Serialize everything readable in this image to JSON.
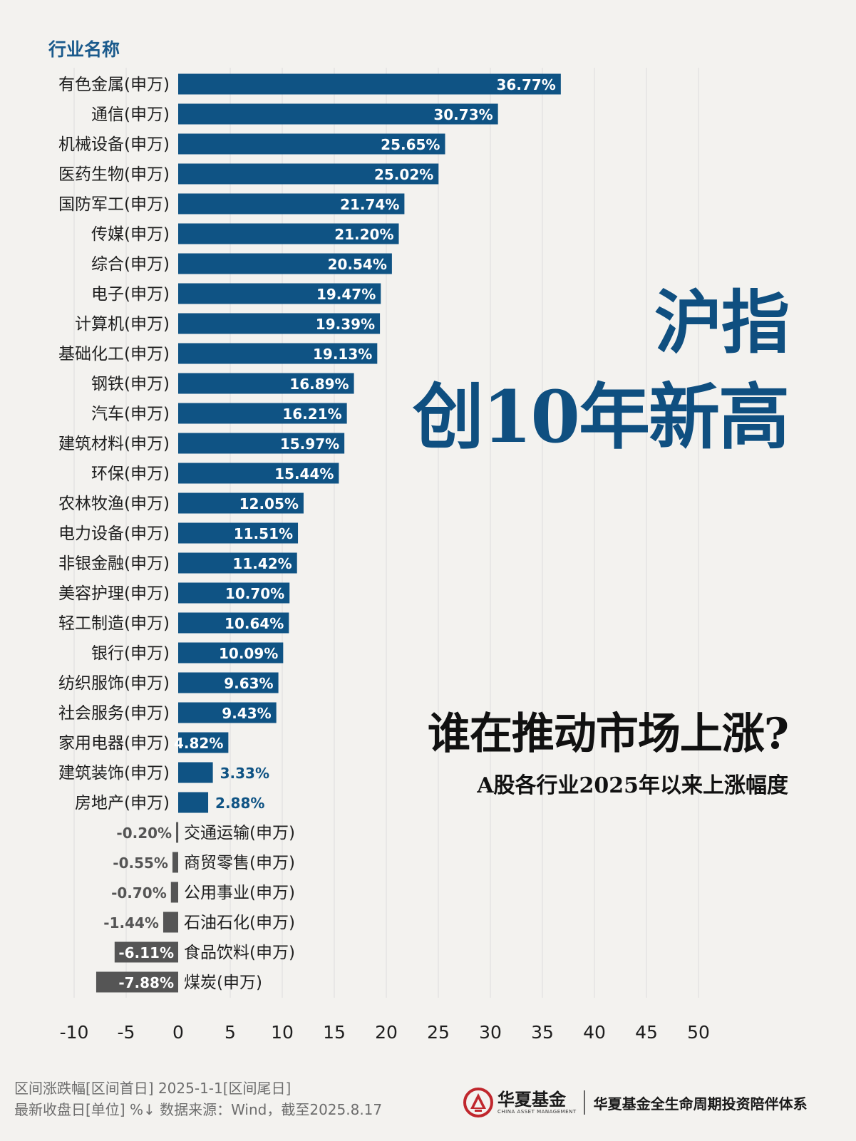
{
  "header": {
    "column_title": "行业名称",
    "headline_line1": "沪指",
    "headline_line2": "创10年新高",
    "question": "谁在推动市场上涨?",
    "subtitle": "A股各行业2025年以来上涨幅度"
  },
  "footer": {
    "note_line1": "区间涨跌幅[区间首日] 2025-1-1[区间尾日]",
    "note_line2": "最新收盘日[单位] %↓ 数据来源：Wind，截至2025.8.17",
    "brand_name": "华夏基金",
    "brand_en": "CHINA ASSET MANAGEMENT",
    "slogan": "华夏基金全生命周期投资陪伴体系"
  },
  "colors": {
    "positive_bar": "#0f5384",
    "negative_bar": "#555555",
    "positive_text": "#0f5384",
    "negative_text": "#555555",
    "brand_red": "#c0272d",
    "grid": "#dcdcdc"
  },
  "chart_data": {
    "type": "bar",
    "orientation": "horizontal",
    "categories": [
      "有色金属(申万)",
      "通信(申万)",
      "机械设备(申万)",
      "医药生物(申万)",
      "国防军工(申万)",
      "传媒(申万)",
      "综合(申万)",
      "电子(申万)",
      "计算机(申万)",
      "基础化工(申万)",
      "钢铁(申万)",
      "汽车(申万)",
      "建筑材料(申万)",
      "环保(申万)",
      "农林牧渔(申万)",
      "电力设备(申万)",
      "非银金融(申万)",
      "美容护理(申万)",
      "轻工制造(申万)",
      "银行(申万)",
      "纺织服饰(申万)",
      "社会服务(申万)",
      "家用电器(申万)",
      "建筑装饰(申万)",
      "房地产(申万)",
      "交通运输(申万)",
      "商贸零售(申万)",
      "公用事业(申万)",
      "石油石化(申万)",
      "食品饮料(申万)",
      "煤炭(申万)"
    ],
    "values": [
      36.77,
      30.73,
      25.65,
      25.02,
      21.74,
      21.2,
      20.54,
      19.47,
      19.39,
      19.13,
      16.89,
      16.21,
      15.97,
      15.44,
      12.05,
      11.51,
      11.42,
      10.7,
      10.64,
      10.09,
      9.63,
      9.43,
      4.82,
      3.33,
      2.88,
      -0.2,
      -0.55,
      -0.7,
      -1.44,
      -6.11,
      -7.88
    ],
    "value_labels": [
      "36.77%",
      "30.73%",
      "25.65%",
      "25.02%",
      "21.74%",
      "21.20%",
      "20.54%",
      "19.47%",
      "19.39%",
      "19.13%",
      "16.89%",
      "16.21%",
      "15.97%",
      "15.44%",
      "12.05%",
      "11.51%",
      "11.42%",
      "10.70%",
      "10.64%",
      "10.09%",
      "9.63%",
      "9.43%",
      "4.82%",
      "3.33%",
      "2.88%",
      "-0.20%",
      "-0.55%",
      "-0.70%",
      "-1.44%",
      "-6.11%",
      "-7.88%"
    ],
    "xticks": [
      -10,
      -5,
      0,
      5,
      10,
      15,
      20,
      25,
      30,
      35,
      40,
      45,
      50
    ],
    "xlim": [
      -10,
      50
    ],
    "grid": true,
    "title": "",
    "xlabel": "",
    "ylabel": "行业名称"
  }
}
